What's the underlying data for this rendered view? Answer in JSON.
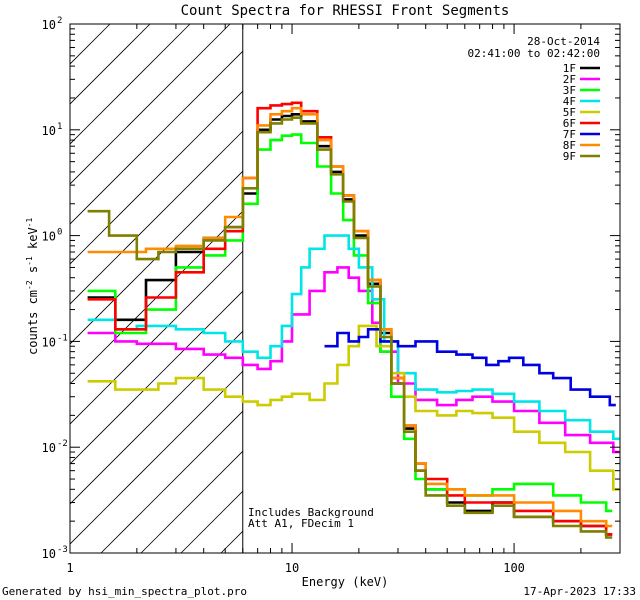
{
  "chart_data": {
    "type": "line",
    "title": "Count Spectra for RHESSI Front Segments",
    "xlabel": "Energy (keV)",
    "ylabel": "counts cm⁻² s⁻¹ keV⁻¹",
    "ylabel_parts": {
      "main": "counts cm",
      "e1": "-2",
      "s": " s",
      "e2": "-1",
      "kev": " keV",
      "e3": "-1"
    },
    "xscale": "log",
    "yscale": "log",
    "xlim": [
      1,
      300
    ],
    "ylim": [
      0.001,
      100
    ],
    "x_ticks": [
      {
        "v": 1,
        "label": "1"
      },
      {
        "v": 10,
        "label": "10"
      },
      {
        "v": 100,
        "label": "100"
      }
    ],
    "y_ticks": [
      {
        "v": 0.001,
        "base": "10",
        "exp": "-3"
      },
      {
        "v": 0.01,
        "base": "10",
        "exp": "-2"
      },
      {
        "v": 0.1,
        "base": "10",
        "exp": "-1"
      },
      {
        "v": 1,
        "base": "10",
        "exp": "0"
      },
      {
        "v": 10,
        "base": "10",
        "exp": "1"
      },
      {
        "v": 100,
        "base": "10",
        "exp": "2"
      }
    ],
    "date": "28-Oct-2014",
    "time_range": "02:41:00 to 02:42:00",
    "annotations": [
      "Includes Background",
      "Att A1, FDecim  1"
    ],
    "threshold_keV": 6,
    "legend_position": "top-right",
    "series": [
      {
        "name": "1F",
        "color": "#000000",
        "points": [
          [
            1.2,
            0.26
          ],
          [
            1.6,
            0.16
          ],
          [
            2.2,
            0.38
          ],
          [
            3,
            0.7
          ],
          [
            4,
            0.95
          ],
          [
            5,
            1.2
          ],
          [
            6,
            2.5
          ],
          [
            7,
            10
          ],
          [
            8,
            12.5
          ],
          [
            9,
            13.5
          ],
          [
            10,
            14
          ],
          [
            11,
            12
          ],
          [
            13,
            7
          ],
          [
            15,
            4
          ],
          [
            17,
            2.2
          ],
          [
            19,
            1
          ],
          [
            22,
            0.35
          ],
          [
            25,
            0.12
          ],
          [
            28,
            0.04
          ],
          [
            32,
            0.015
          ],
          [
            36,
            0.006
          ],
          [
            40,
            0.004
          ],
          [
            50,
            0.003
          ],
          [
            60,
            0.0025
          ],
          [
            80,
            0.003
          ],
          [
            100,
            0.0022
          ],
          [
            150,
            0.002
          ],
          [
            200,
            0.0018
          ],
          [
            260,
            0.0015
          ]
        ]
      },
      {
        "name": "2F",
        "color": "#ff00ff",
        "points": [
          [
            1.2,
            0.12
          ],
          [
            1.6,
            0.1
          ],
          [
            2,
            0.095
          ],
          [
            3,
            0.085
          ],
          [
            4,
            0.075
          ],
          [
            5,
            0.07
          ],
          [
            6,
            0.06
          ],
          [
            7,
            0.055
          ],
          [
            8,
            0.065
          ],
          [
            9,
            0.1
          ],
          [
            10,
            0.18
          ],
          [
            12,
            0.3
          ],
          [
            14,
            0.45
          ],
          [
            16,
            0.5
          ],
          [
            18,
            0.4
          ],
          [
            20,
            0.3
          ],
          [
            23,
            0.15
          ],
          [
            25,
            0.08
          ],
          [
            30,
            0.04
          ],
          [
            36,
            0.028
          ],
          [
            45,
            0.025
          ],
          [
            55,
            0.028
          ],
          [
            65,
            0.03
          ],
          [
            80,
            0.027
          ],
          [
            100,
            0.022
          ],
          [
            130,
            0.017
          ],
          [
            170,
            0.013
          ],
          [
            220,
            0.011
          ],
          [
            280,
            0.009
          ]
        ]
      },
      {
        "name": "3F",
        "color": "#00ff00",
        "points": [
          [
            1.2,
            0.3
          ],
          [
            1.6,
            0.12
          ],
          [
            2.2,
            0.2
          ],
          [
            3,
            0.5
          ],
          [
            4,
            0.65
          ],
          [
            5,
            0.9
          ],
          [
            6,
            2
          ],
          [
            7,
            6.5
          ],
          [
            8,
            8
          ],
          [
            9,
            8.8
          ],
          [
            10,
            9
          ],
          [
            11,
            7.5
          ],
          [
            13,
            4.5
          ],
          [
            15,
            2.5
          ],
          [
            17,
            1.4
          ],
          [
            19,
            0.65
          ],
          [
            22,
            0.23
          ],
          [
            25,
            0.08
          ],
          [
            28,
            0.03
          ],
          [
            32,
            0.012
          ],
          [
            36,
            0.005
          ],
          [
            40,
            0.004
          ],
          [
            50,
            0.004
          ],
          [
            60,
            0.0035
          ],
          [
            80,
            0.004
          ],
          [
            100,
            0.0045
          ],
          [
            150,
            0.0035
          ],
          [
            200,
            0.003
          ],
          [
            260,
            0.0025
          ]
        ]
      },
      {
        "name": "4F",
        "color": "#00e5e5",
        "points": [
          [
            1.2,
            0.16
          ],
          [
            1.6,
            0.13
          ],
          [
            2,
            0.14
          ],
          [
            3,
            0.13
          ],
          [
            4,
            0.12
          ],
          [
            5,
            0.1
          ],
          [
            6,
            0.08
          ],
          [
            7,
            0.07
          ],
          [
            8,
            0.09
          ],
          [
            9,
            0.14
          ],
          [
            10,
            0.28
          ],
          [
            11,
            0.5
          ],
          [
            12,
            0.75
          ],
          [
            14,
            1
          ],
          [
            16,
            1
          ],
          [
            18,
            0.75
          ],
          [
            20,
            0.5
          ],
          [
            23,
            0.25
          ],
          [
            26,
            0.1
          ],
          [
            30,
            0.05
          ],
          [
            36,
            0.035
          ],
          [
            45,
            0.033
          ],
          [
            55,
            0.034
          ],
          [
            65,
            0.035
          ],
          [
            80,
            0.032
          ],
          [
            100,
            0.027
          ],
          [
            130,
            0.022
          ],
          [
            170,
            0.018
          ],
          [
            220,
            0.014
          ],
          [
            280,
            0.012
          ]
        ]
      },
      {
        "name": "5F",
        "color": "#cccc00",
        "points": [
          [
            1.2,
            0.042
          ],
          [
            1.6,
            0.035
          ],
          [
            2,
            0.035
          ],
          [
            2.5,
            0.04
          ],
          [
            3,
            0.045
          ],
          [
            4,
            0.035
          ],
          [
            5,
            0.03
          ],
          [
            6,
            0.027
          ],
          [
            7,
            0.025
          ],
          [
            8,
            0.028
          ],
          [
            9,
            0.03
          ],
          [
            10,
            0.032
          ],
          [
            12,
            0.028
          ],
          [
            14,
            0.04
          ],
          [
            16,
            0.06
          ],
          [
            18,
            0.09
          ],
          [
            20,
            0.14
          ],
          [
            24,
            0.09
          ],
          [
            28,
            0.05
          ],
          [
            32,
            0.03
          ],
          [
            36,
            0.022
          ],
          [
            45,
            0.02
          ],
          [
            55,
            0.022
          ],
          [
            65,
            0.021
          ],
          [
            80,
            0.019
          ],
          [
            100,
            0.014
          ],
          [
            130,
            0.011
          ],
          [
            170,
            0.009
          ],
          [
            220,
            0.006
          ],
          [
            280,
            0.004
          ]
        ]
      },
      {
        "name": "6F",
        "color": "#ff0000",
        "points": [
          [
            1.2,
            0.25
          ],
          [
            1.6,
            0.13
          ],
          [
            2.2,
            0.26
          ],
          [
            3,
            0.45
          ],
          [
            4,
            0.75
          ],
          [
            5,
            1.1
          ],
          [
            6,
            3.5
          ],
          [
            7,
            16
          ],
          [
            8,
            17
          ],
          [
            9,
            17.5
          ],
          [
            10,
            18
          ],
          [
            11,
            15
          ],
          [
            13,
            8.5
          ],
          [
            15,
            4.5
          ],
          [
            17,
            2.4
          ],
          [
            19,
            1.1
          ],
          [
            22,
            0.38
          ],
          [
            25,
            0.13
          ],
          [
            28,
            0.045
          ],
          [
            32,
            0.016
          ],
          [
            36,
            0.007
          ],
          [
            40,
            0.005
          ],
          [
            50,
            0.0035
          ],
          [
            60,
            0.003
          ],
          [
            80,
            0.003
          ],
          [
            100,
            0.0025
          ],
          [
            150,
            0.002
          ],
          [
            200,
            0.0018
          ],
          [
            260,
            0.0015
          ]
        ]
      },
      {
        "name": "7F",
        "color": "#0000e0",
        "points": [
          [
            14,
            0.09
          ],
          [
            16,
            0.12
          ],
          [
            18,
            0.1
          ],
          [
            20,
            0.11
          ],
          [
            22,
            0.13
          ],
          [
            25,
            0.1
          ],
          [
            30,
            0.09
          ],
          [
            36,
            0.1
          ],
          [
            45,
            0.08
          ],
          [
            55,
            0.075
          ],
          [
            65,
            0.07
          ],
          [
            75,
            0.06
          ],
          [
            85,
            0.065
          ],
          [
            95,
            0.07
          ],
          [
            110,
            0.06
          ],
          [
            130,
            0.05
          ],
          [
            150,
            0.045
          ],
          [
            180,
            0.035
          ],
          [
            220,
            0.03
          ],
          [
            270,
            0.025
          ]
        ]
      },
      {
        "name": "8F",
        "color": "#ff8c00",
        "points": [
          [
            1.2,
            0.7
          ],
          [
            1.6,
            0.7
          ],
          [
            2.2,
            0.75
          ],
          [
            3,
            0.8
          ],
          [
            4,
            0.95
          ],
          [
            5,
            1.5
          ],
          [
            6,
            3.5
          ],
          [
            7,
            11
          ],
          [
            8,
            14
          ],
          [
            9,
            15
          ],
          [
            10,
            16
          ],
          [
            11,
            14
          ],
          [
            13,
            8
          ],
          [
            15,
            4.5
          ],
          [
            17,
            2.4
          ],
          [
            19,
            1.1
          ],
          [
            22,
            0.38
          ],
          [
            25,
            0.13
          ],
          [
            28,
            0.045
          ],
          [
            32,
            0.016
          ],
          [
            36,
            0.007
          ],
          [
            40,
            0.0045
          ],
          [
            50,
            0.004
          ],
          [
            60,
            0.0035
          ],
          [
            80,
            0.0035
          ],
          [
            100,
            0.003
          ],
          [
            150,
            0.0025
          ],
          [
            200,
            0.002
          ],
          [
            260,
            0.0018
          ]
        ]
      },
      {
        "name": "9F",
        "color": "#7f7f00",
        "points": [
          [
            1.2,
            1.7
          ],
          [
            1.5,
            1.0
          ],
          [
            2,
            0.6
          ],
          [
            2.5,
            0.7
          ],
          [
            3,
            0.75
          ],
          [
            4,
            0.9
          ],
          [
            5,
            1.2
          ],
          [
            6,
            2.8
          ],
          [
            7,
            9.5
          ],
          [
            8,
            11.5
          ],
          [
            9,
            12.5
          ],
          [
            10,
            13
          ],
          [
            11,
            11.5
          ],
          [
            13,
            6.5
          ],
          [
            15,
            3.8
          ],
          [
            17,
            2.1
          ],
          [
            19,
            0.95
          ],
          [
            22,
            0.33
          ],
          [
            25,
            0.11
          ],
          [
            28,
            0.04
          ],
          [
            32,
            0.014
          ],
          [
            36,
            0.006
          ],
          [
            40,
            0.0035
          ],
          [
            50,
            0.0028
          ],
          [
            60,
            0.0024
          ],
          [
            80,
            0.0028
          ],
          [
            100,
            0.0022
          ],
          [
            150,
            0.0018
          ],
          [
            200,
            0.0016
          ],
          [
            260,
            0.0014
          ]
        ]
      }
    ]
  },
  "footer": {
    "generated_by": "Generated by hsi_min_spectra_plot.pro",
    "timestamp": "17-Apr-2023 17:33"
  }
}
